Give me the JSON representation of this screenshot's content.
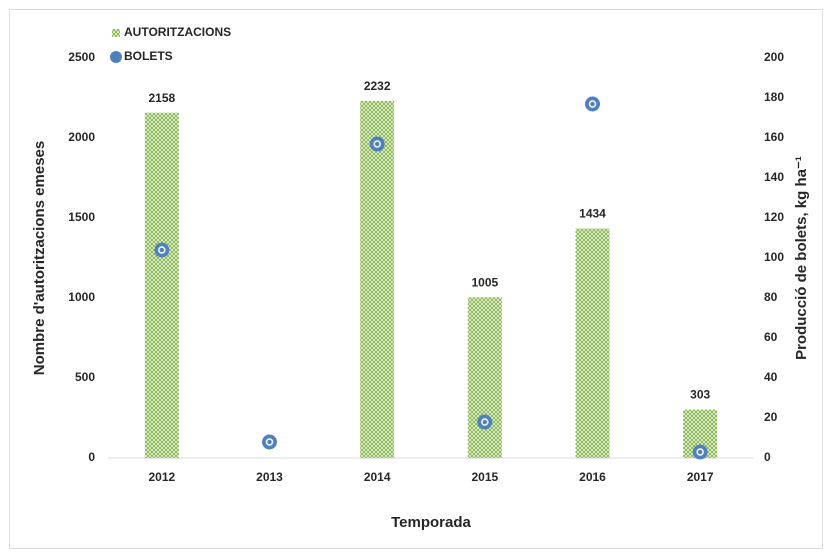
{
  "chart_data": {
    "type": "bar",
    "x_label": "Temporada",
    "y_label": "Nombre d'autoritzacions emeses",
    "y2_label": "Producció de bolets, kg ha⁻¹",
    "categories": [
      "2012",
      "2013",
      "2014",
      "2015",
      "2016",
      "2017"
    ],
    "series": [
      {
        "name": "AUTORITZACIONS",
        "color": "#8fbc5a",
        "type": "bar",
        "values": [
          2158,
          0,
          2232,
          1005,
          1434,
          303
        ]
      },
      {
        "name": "BOLETS",
        "color": "#4f81bd",
        "type": "scatter",
        "axis": "y2",
        "values": [
          104,
          8,
          157,
          18,
          177,
          3
        ]
      }
    ],
    "ylim": [
      0,
      2500
    ],
    "yticks": [
      0,
      500,
      1000,
      1500,
      2000,
      2500
    ],
    "y2lim": [
      0,
      200
    ],
    "y2ticks": [
      0,
      20,
      40,
      60,
      80,
      100,
      120,
      140,
      160,
      180,
      200
    ],
    "legend": "top-left",
    "grid": false
  }
}
